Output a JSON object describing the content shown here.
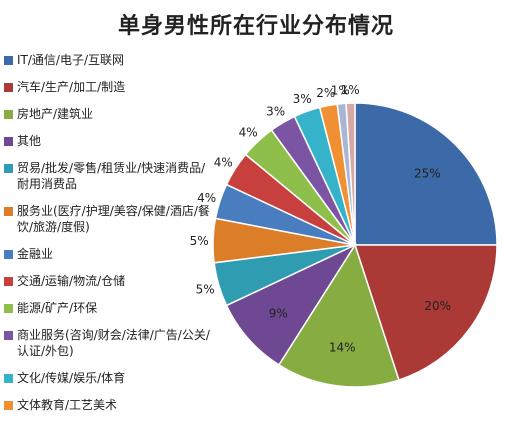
{
  "chart_data": {
    "type": "pie",
    "title": "单身男性所在行业分布情况",
    "legend_position": "left",
    "slices": [
      {
        "label": "IT/通信/电子/互联网",
        "value": 25,
        "display": "25%",
        "color": "#3c69a8"
      },
      {
        "label": "汽车/生产/加工/制造",
        "value": 20,
        "display": "20%",
        "color": "#ab3a37"
      },
      {
        "label": "房地产/建筑业",
        "value": 14,
        "display": "14%",
        "color": "#87ad42"
      },
      {
        "label": "其他",
        "value": 9,
        "display": "9%",
        "color": "#6e4892"
      },
      {
        "label": "贸易/批发/零售/租赁业/快速消费品/耐用消费品",
        "value": 5,
        "display": "5%",
        "color": "#2f9cb1"
      },
      {
        "label": "服务业(医疗/护理/美容/保健/酒店/餐饮/旅游/度假)",
        "value": 5,
        "display": "5%",
        "color": "#dc7d28"
      },
      {
        "label": "金融业",
        "value": 4,
        "display": "4%",
        "color": "#4a7cc0"
      },
      {
        "label": "交通/运输/物流/仓储",
        "value": 4,
        "display": "4%",
        "color": "#c8403d"
      },
      {
        "label": "能源/矿产/环保",
        "value": 4,
        "display": "4%",
        "color": "#8fbf4b"
      },
      {
        "label": "商业服务(咨询/财会/法律/广告/公关/认证/外包)",
        "value": 3,
        "display": "3%",
        "color": "#7b55a4"
      },
      {
        "label": "文化/传媒/娱乐/体育",
        "value": 3,
        "display": "3%",
        "color": "#34b3ca"
      },
      {
        "label": "文体教育/工艺美术",
        "value": 2,
        "display": "2%",
        "color": "#f19032"
      },
      {
        "label": "",
        "value": 1,
        "display": "1%",
        "color": "#a9b6d4"
      },
      {
        "label": "",
        "value": 1,
        "display": "1%",
        "color": "#d6a9a8"
      }
    ],
    "legend_entries": [
      "IT/通信/电子/互联网",
      "汽车/生产/加工/制造",
      "房地产/建筑业",
      "其他",
      "贸易/批发/零售/租赁业/快速消费品/耐用消费品",
      "服务业(医疗/护理/美容/保健/酒店/餐饮/旅游/度假)",
      "金融业",
      "交通/运输/物流/仓储",
      "能源/矿产/环保",
      "商业服务(咨询/财会/法律/广告/公关/认证/外包)",
      "文化/传媒/娱乐/体育",
      "文体教育/工艺美术"
    ]
  }
}
